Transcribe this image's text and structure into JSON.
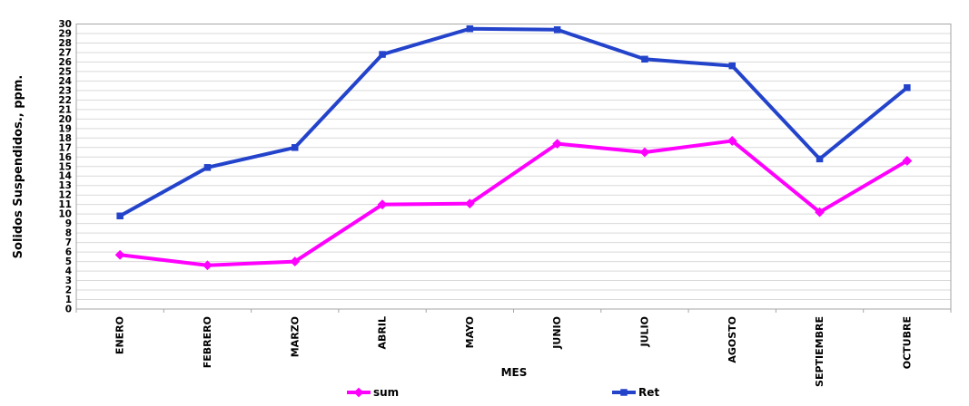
{
  "chart_data": {
    "type": "line",
    "title": "",
    "xlabel": "MES",
    "ylabel": "Solidos Suspendidos., ppm.",
    "categories": [
      "ENERO",
      "FEBRERO",
      "MARZO",
      "ABRIL",
      "MAYO",
      "JUNIO",
      "JULIO",
      "AGOSTO",
      "SEPTIEMBRE",
      "OCTUBRE"
    ],
    "series": [
      {
        "name": "sum",
        "color": "#ff00ff",
        "marker": "diamond",
        "values": [
          5.7,
          4.6,
          5.0,
          11.0,
          11.1,
          17.4,
          16.5,
          17.7,
          10.2,
          15.6
        ]
      },
      {
        "name": "Ret",
        "color": "#2343cb",
        "marker": "square",
        "values": [
          9.8,
          14.9,
          17.0,
          26.8,
          29.5,
          29.4,
          26.3,
          25.6,
          15.8,
          23.3
        ]
      }
    ],
    "ylim": [
      0,
      30
    ],
    "ytick_step": 1,
    "grid": "horizontal-every-unit",
    "legend_position": "bottom",
    "colors": {
      "gridline": "#d9d9d9",
      "axis": "#a6a6a6",
      "text": "#000000",
      "background": "#ffffff"
    }
  }
}
